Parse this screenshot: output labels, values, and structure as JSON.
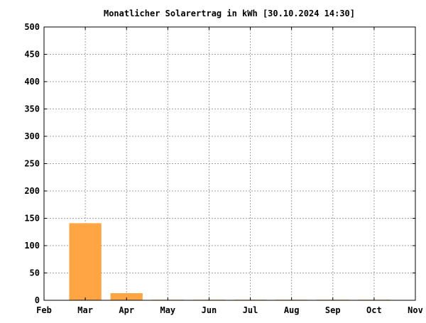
{
  "chart_data": {
    "type": "bar",
    "title": "Monatlicher Solarertrag in kWh [30.10.2024 14:30]",
    "xlabel": "",
    "ylabel": "",
    "x_ticks": [
      "Feb",
      "Mar",
      "Apr",
      "May",
      "Jun",
      "Jul",
      "Aug",
      "Sep",
      "Oct",
      "Nov"
    ],
    "categories": [
      "Mar",
      "Apr",
      "May",
      "Jun",
      "Jul",
      "Aug",
      "Sep",
      "Oct"
    ],
    "values": [
      141,
      13,
      1,
      1,
      1,
      1,
      1,
      1
    ],
    "ylim": [
      0,
      500
    ],
    "y_ticks": [
      0,
      50,
      100,
      150,
      200,
      250,
      300,
      350,
      400,
      450,
      500
    ],
    "grid": true,
    "colors": {
      "bar": "#ffa544",
      "grid": "#a0a0a0",
      "axis": "#000000",
      "background": "#ffffff"
    }
  }
}
